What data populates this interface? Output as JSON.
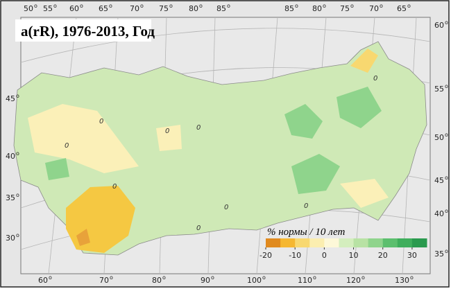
{
  "title": "a(rR), 1976-2013, Год",
  "degree_mark": "o",
  "graticule_labels": {
    "top": [
      "50",
      "55",
      "60",
      "65",
      "70",
      "75",
      "80",
      "85",
      "85",
      "80",
      "75",
      "70",
      "65"
    ],
    "left": [
      "45",
      "40",
      "35",
      "30"
    ],
    "right": [
      "60",
      "55",
      "50",
      "45",
      "40",
      "35"
    ],
    "bottom": [
      "60",
      "70",
      "80",
      "90",
      "100",
      "110",
      "120",
      "130"
    ]
  },
  "contour_labels": [
    "0",
    "0",
    "0",
    "0",
    "0",
    "0",
    "0",
    "0",
    "0"
  ],
  "legend": {
    "title": "% нормы / 10 лет",
    "range": [
      -20,
      35
    ],
    "colors": [
      "#e08a1e",
      "#f5b731",
      "#f8d870",
      "#fbeeb0",
      "#fdf8d8",
      "#d4eebe",
      "#b8e2a4",
      "#8fd48c",
      "#5cbf6e",
      "#3fae5c",
      "#2a9a4e"
    ],
    "ticks": [
      -20,
      -10,
      0,
      10,
      20,
      30
    ]
  }
}
